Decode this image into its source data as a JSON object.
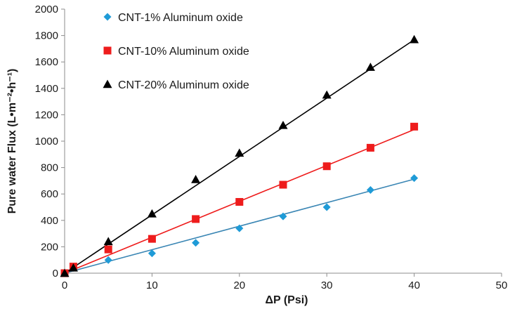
{
  "chart_data": {
    "type": "scatter",
    "title": "",
    "xlabel": "ΔP (Psi)",
    "ylabel": "Pure water Flux (L•m⁻²•h⁻¹)",
    "xlim": [
      0,
      50
    ],
    "ylim": [
      0,
      2000
    ],
    "x_ticks": [
      0,
      10,
      20,
      30,
      40,
      50
    ],
    "y_ticks": [
      0,
      200,
      400,
      600,
      800,
      1000,
      1200,
      1400,
      1600,
      1800,
      2000
    ],
    "grid": false,
    "legend_position": "top-left",
    "trendlines": true,
    "series": [
      {
        "name": "CNT-1% Aluminum oxide",
        "marker": "diamond",
        "color": "#1f9bd7",
        "line_color": "#3a86b4",
        "x": [
          0,
          1,
          5,
          10,
          15,
          20,
          25,
          30,
          35,
          40
        ],
        "values": [
          0,
          40,
          100,
          150,
          230,
          340,
          430,
          500,
          630,
          720
        ],
        "trend": {
          "slope": 17.8,
          "intercept": 0
        }
      },
      {
        "name": "CNT-10% Aluminum oxide",
        "marker": "square",
        "color": "#ee1c1c",
        "line_color": "#ee1c1c",
        "x": [
          0,
          1,
          5,
          10,
          15,
          20,
          25,
          30,
          35,
          40
        ],
        "values": [
          0,
          50,
          180,
          260,
          410,
          540,
          670,
          810,
          950,
          1110
        ],
        "trend": {
          "slope": 27.2,
          "intercept": 0
        }
      },
      {
        "name": "CNT-20% Aluminum oxide",
        "marker": "triangle",
        "color": "#000000",
        "line_color": "#000000",
        "x": [
          0,
          1,
          5,
          10,
          15,
          20,
          25,
          30,
          35,
          40
        ],
        "values": [
          0,
          40,
          240,
          450,
          710,
          910,
          1120,
          1350,
          1560,
          1770
        ],
        "trend": {
          "slope": 44.2,
          "intercept": 0
        }
      }
    ]
  }
}
